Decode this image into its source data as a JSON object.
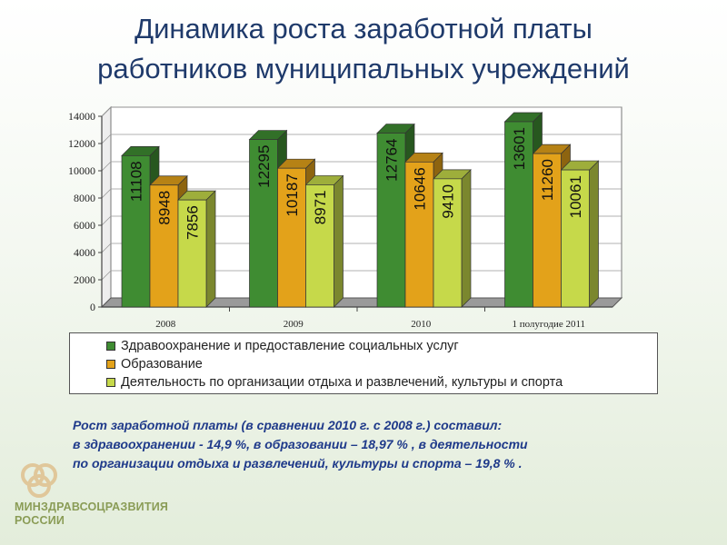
{
  "title_line1": "Динамика роста заработной платы",
  "title_line2": "работников муниципальных учреждений",
  "chart_data": {
    "type": "bar",
    "categories": [
      "2008",
      "2009",
      "2010",
      "1 полугодие 2011"
    ],
    "series": [
      {
        "name": "Здравоохранение и предоставление социальных услуг",
        "values": [
          11108,
          12295,
          12764,
          13601
        ],
        "color": "#3f8c32"
      },
      {
        "name": "Образование",
        "values": [
          8948,
          10187,
          10646,
          11260
        ],
        "color": "#e3a21a"
      },
      {
        "name": "Деятельность по организации отдыха и развлечений, культуры и спорта",
        "values": [
          7856,
          8971,
          9410,
          10061
        ],
        "color": "#c6d94a"
      }
    ],
    "y_ticks": [
      "0",
      "2000",
      "4000",
      "6000",
      "8000",
      "10000",
      "12000",
      "14000"
    ],
    "ylim": [
      0,
      14000
    ],
    "grid": true,
    "legend": "bottom",
    "data_labels": "vertical-in-bar"
  },
  "summary": {
    "line1": "Рост заработной платы (в сравнении 2010 г. с 2008 г.) составил:",
    "line2": "в здравоохранении - 14,9 %, в образовании – 18,97 % , в деятельности",
    "line3": "по организации отдыха и развлечений, культуры и спорта – 19,8 % ."
  },
  "logo": {
    "line1": "МИНЗДРАВСОЦРАЗВИТИЯ",
    "line2": "РОССИИ"
  },
  "colors": {
    "title": "#1f3a6b",
    "summary": "#1f3a8a",
    "logo": "#8a9c56"
  }
}
